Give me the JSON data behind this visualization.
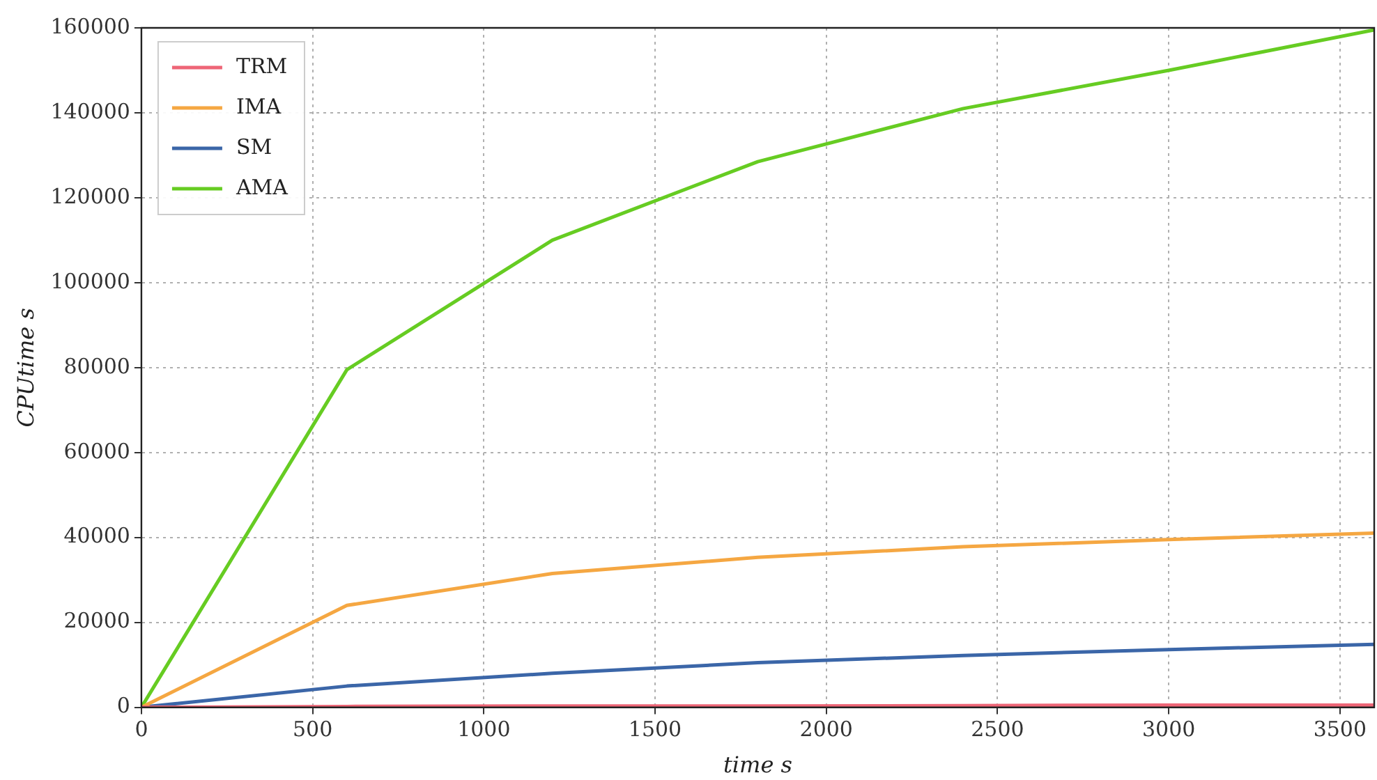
{
  "chart_data": {
    "type": "line",
    "xlabel": "time s",
    "ylabel": "CPUtime s",
    "x": [
      0,
      600,
      1200,
      1800,
      2400,
      3000,
      3600
    ],
    "series": [
      {
        "name": "TRM",
        "color": "#ee6677",
        "values": [
          0,
          200,
          300,
          300,
          400,
          500,
          500
        ]
      },
      {
        "name": "IMA",
        "color": "#f5a742",
        "values": [
          0,
          24000,
          31500,
          35300,
          37800,
          39500,
          41000
        ]
      },
      {
        "name": "SM",
        "color": "#3b66a8",
        "values": [
          0,
          5000,
          8000,
          10500,
          12200,
          13600,
          14800
        ]
      },
      {
        "name": "AMA",
        "color": "#66cc22",
        "values": [
          0,
          79500,
          110000,
          128500,
          141000,
          150000,
          159500
        ]
      }
    ],
    "xlim": [
      0,
      3600
    ],
    "xticks": [
      0,
      500,
      1000,
      1500,
      2000,
      2500,
      3000,
      3500
    ],
    "ylim": [
      0,
      160000
    ],
    "yticks": [
      0,
      20000,
      40000,
      60000,
      80000,
      100000,
      120000,
      140000,
      160000
    ],
    "grid": true,
    "legend": "top left",
    "marker": "none",
    "line_style": "solid"
  }
}
